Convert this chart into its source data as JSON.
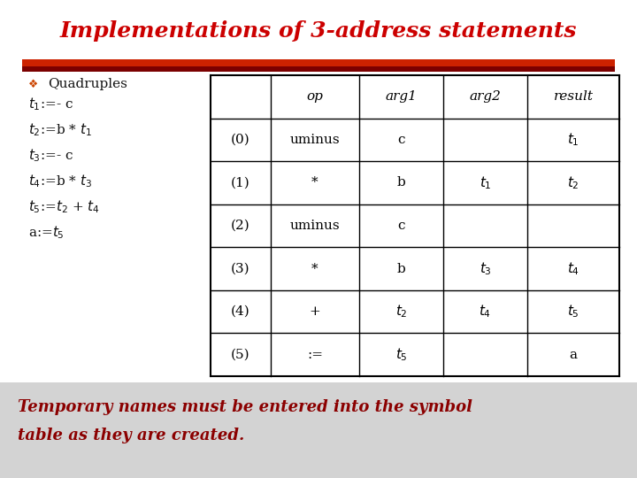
{
  "title": "Implementations of 3-address statements",
  "title_color": "#cc0000",
  "title_fontsize": 18,
  "bg_color": "#ffffff",
  "footer_bg_color": "#d3d3d3",
  "footer_text": "Temporary names must be entered into the symbol\ntable as they are created.",
  "footer_color": "#8b0000",
  "footer_fontsize": 13,
  "divider_colors": [
    "#cc2200",
    "#8b0000"
  ],
  "left_bullet": "❖",
  "left_heading": "Quadruples",
  "left_lines": [
    "$t_1$:=- c",
    "$t_2$:=b * $t_1$",
    "$t_3$:=- c",
    "$t_4$:=b * $t_3$",
    "$t_5$:=$t_2$ + $t_4$",
    "a:=$t_5$"
  ],
  "table_headers": [
    "",
    "op",
    "arg1",
    "arg2",
    "result"
  ],
  "table_rows": [
    [
      "(0)",
      "uminus",
      "c",
      "",
      "$t_1$"
    ],
    [
      "(1)",
      "*",
      "b",
      "$t_1$",
      "$t_2$"
    ],
    [
      "(2)",
      "uminus",
      "c",
      "",
      ""
    ],
    [
      "(3)",
      "*",
      "b",
      "$t_3$",
      "$t_4$"
    ],
    [
      "(4)",
      "+",
      "$t_2$",
      "$t_4$",
      "$t_5$"
    ],
    [
      "(5)",
      ":=",
      "$t_5$",
      "",
      "a"
    ]
  ]
}
